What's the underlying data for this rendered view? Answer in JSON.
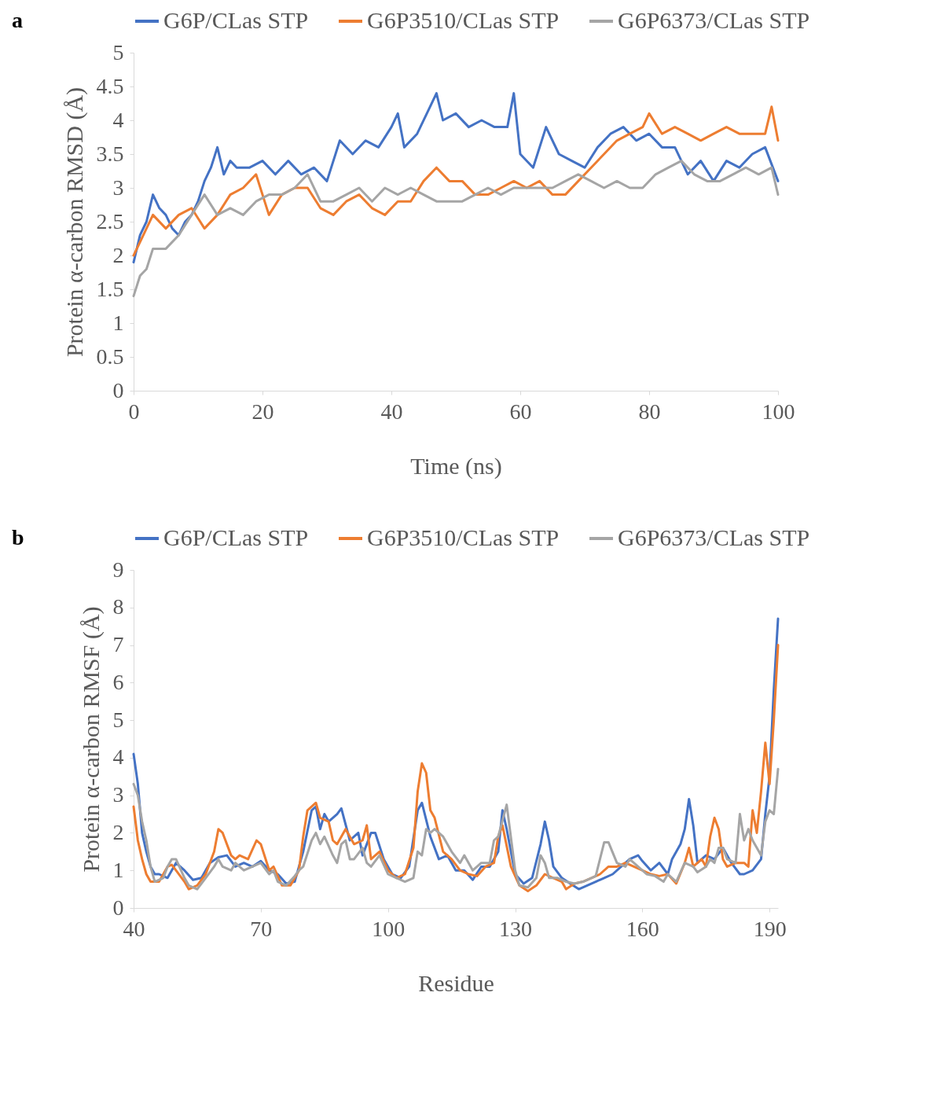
{
  "chart_data": [
    {
      "type": "line",
      "xlabel": "Time (ns)",
      "ylabel": "Protein α-carbon RMSD (Å)",
      "annotations": [
        "a"
      ],
      "legend": "top",
      "grid": false,
      "xlim": [
        0,
        100
      ],
      "xticks": [
        0,
        20,
        40,
        60,
        80,
        100
      ],
      "ylim": [
        0,
        5
      ],
      "yticks": [
        0,
        0.5,
        1,
        1.5,
        2,
        2.5,
        3,
        3.5,
        4,
        4.5,
        5
      ],
      "series": [
        {
          "name": "G6P/CLas STP",
          "color": "#4472c4",
          "x": [
            0,
            1,
            2,
            3,
            4,
            5,
            6,
            7,
            8,
            9,
            10,
            11,
            12,
            13,
            14,
            15,
            16,
            18,
            20,
            22,
            24,
            26,
            28,
            30,
            32,
            34,
            36,
            38,
            40,
            41,
            42,
            44,
            46,
            47,
            48,
            50,
            52,
            54,
            56,
            58,
            59,
            60,
            62,
            64,
            66,
            68,
            70,
            72,
            74,
            76,
            78,
            80,
            82,
            84,
            86,
            88,
            90,
            92,
            94,
            96,
            98,
            100
          ],
          "values": [
            1.9,
            2.3,
            2.5,
            2.9,
            2.7,
            2.6,
            2.4,
            2.3,
            2.5,
            2.6,
            2.8,
            3.1,
            3.3,
            3.6,
            3.2,
            3.4,
            3.3,
            3.3,
            3.4,
            3.2,
            3.4,
            3.2,
            3.3,
            3.1,
            3.7,
            3.5,
            3.7,
            3.6,
            3.9,
            4.1,
            3.6,
            3.8,
            4.2,
            4.4,
            4.0,
            4.1,
            3.9,
            4.0,
            3.9,
            3.9,
            4.4,
            3.5,
            3.3,
            3.9,
            3.5,
            3.4,
            3.3,
            3.6,
            3.8,
            3.9,
            3.7,
            3.8,
            3.6,
            3.6,
            3.2,
            3.4,
            3.1,
            3.4,
            3.3,
            3.5,
            3.6,
            3.1
          ]
        },
        {
          "name": "G6P3510/CLas STP",
          "color": "#ed7d31",
          "x": [
            0,
            1,
            2,
            3,
            5,
            7,
            9,
            11,
            13,
            15,
            17,
            19,
            21,
            23,
            25,
            27,
            29,
            31,
            33,
            35,
            37,
            39,
            41,
            43,
            45,
            47,
            49,
            51,
            53,
            55,
            57,
            59,
            61,
            63,
            65,
            67,
            69,
            71,
            73,
            75,
            77,
            79,
            80,
            82,
            84,
            86,
            88,
            90,
            92,
            94,
            96,
            98,
            99,
            100
          ],
          "values": [
            2.0,
            2.2,
            2.4,
            2.6,
            2.4,
            2.6,
            2.7,
            2.4,
            2.6,
            2.9,
            3.0,
            3.2,
            2.6,
            2.9,
            3.0,
            3.0,
            2.7,
            2.6,
            2.8,
            2.9,
            2.7,
            2.6,
            2.8,
            2.8,
            3.1,
            3.3,
            3.1,
            3.1,
            2.9,
            2.9,
            3.0,
            3.1,
            3.0,
            3.1,
            2.9,
            2.9,
            3.1,
            3.3,
            3.5,
            3.7,
            3.8,
            3.9,
            4.1,
            3.8,
            3.9,
            3.8,
            3.7,
            3.8,
            3.9,
            3.8,
            3.8,
            3.8,
            4.2,
            3.7
          ]
        },
        {
          "name": "G6P6373/CLas STP",
          "color": "#a5a5a5",
          "x": [
            0,
            1,
            2,
            3,
            5,
            7,
            9,
            11,
            13,
            15,
            17,
            19,
            21,
            23,
            25,
            27,
            29,
            31,
            33,
            35,
            37,
            39,
            41,
            43,
            45,
            47,
            49,
            51,
            53,
            55,
            57,
            59,
            61,
            63,
            65,
            67,
            69,
            71,
            73,
            75,
            77,
            79,
            81,
            83,
            85,
            87,
            89,
            91,
            93,
            95,
            97,
            99,
            100
          ],
          "values": [
            1.4,
            1.7,
            1.8,
            2.1,
            2.1,
            2.3,
            2.6,
            2.9,
            2.6,
            2.7,
            2.6,
            2.8,
            2.9,
            2.9,
            3.0,
            3.2,
            2.8,
            2.8,
            2.9,
            3.0,
            2.8,
            3.0,
            2.9,
            3.0,
            2.9,
            2.8,
            2.8,
            2.8,
            2.9,
            3.0,
            2.9,
            3.0,
            3.0,
            3.0,
            3.0,
            3.1,
            3.2,
            3.1,
            3.0,
            3.1,
            3.0,
            3.0,
            3.2,
            3.3,
            3.4,
            3.2,
            3.1,
            3.1,
            3.2,
            3.3,
            3.2,
            3.3,
            2.9
          ]
        }
      ]
    },
    {
      "type": "line",
      "xlabel": "Residue",
      "ylabel": "Protein α-carbon RMSF (Å)",
      "annotations": [
        "b"
      ],
      "legend": "top",
      "grid": false,
      "xlim": [
        40,
        192
      ],
      "xticks": [
        40,
        70,
        100,
        130,
        160,
        190
      ],
      "ylim": [
        0,
        9
      ],
      "yticks": [
        0,
        1,
        2,
        3,
        4,
        5,
        6,
        7,
        8,
        9
      ],
      "series": [
        {
          "name": "G6P/CLas STP",
          "color": "#4472c4",
          "x": [
            40,
            41,
            42,
            43,
            44,
            45,
            46,
            48,
            50,
            52,
            54,
            56,
            58,
            60,
            62,
            64,
            66,
            68,
            70,
            72,
            74,
            76,
            78,
            80,
            82,
            83,
            84,
            85,
            86,
            88,
            89,
            91,
            93,
            94,
            96,
            97,
            99,
            101,
            103,
            105,
            107,
            108,
            110,
            112,
            114,
            116,
            118,
            120,
            122,
            124,
            126,
            127,
            128,
            130,
            132,
            134,
            136,
            137,
            138,
            139,
            141,
            143,
            145,
            147,
            149,
            151,
            153,
            155,
            157,
            159,
            160,
            162,
            163,
            164,
            166,
            167,
            169,
            170,
            171,
            172,
            173,
            175,
            177,
            179,
            181,
            183,
            184,
            186,
            188,
            189,
            190,
            191,
            192
          ],
          "values": [
            4.1,
            3.3,
            2.0,
            1.5,
            1.1,
            0.9,
            0.9,
            0.8,
            1.2,
            1.0,
            0.75,
            0.8,
            1.2,
            1.35,
            1.4,
            1.1,
            1.2,
            1.1,
            1.25,
            1.0,
            0.9,
            0.65,
            0.7,
            1.5,
            2.6,
            2.7,
            2.1,
            2.5,
            2.3,
            2.5,
            2.65,
            1.8,
            2.0,
            1.4,
            2.0,
            2.0,
            1.3,
            0.9,
            0.8,
            1.1,
            2.6,
            2.8,
            1.9,
            1.3,
            1.4,
            1.0,
            1.0,
            0.75,
            1.1,
            1.1,
            1.5,
            2.6,
            2.1,
            0.9,
            0.65,
            0.8,
            1.7,
            2.3,
            1.8,
            1.1,
            0.8,
            0.65,
            0.5,
            0.6,
            0.7,
            0.8,
            0.9,
            1.1,
            1.3,
            1.4,
            1.25,
            1.0,
            1.1,
            1.2,
            0.9,
            1.3,
            1.7,
            2.1,
            2.9,
            2.2,
            1.2,
            1.4,
            1.3,
            1.6,
            1.2,
            0.9,
            0.9,
            1.0,
            1.3,
            2.5,
            3.5,
            5.8,
            7.7
          ]
        },
        {
          "name": "G6P3510/CLas STP",
          "color": "#ed7d31",
          "x": [
            40,
            41,
            42,
            43,
            44,
            46,
            48,
            49,
            50,
            52,
            53,
            55,
            57,
            59,
            60,
            61,
            63,
            64,
            65,
            67,
            69,
            70,
            72,
            73,
            75,
            77,
            79,
            80,
            81,
            83,
            84,
            86,
            87,
            88,
            90,
            92,
            94,
            95,
            96,
            98,
            100,
            102,
            104,
            106,
            107,
            108,
            109,
            110,
            111,
            113,
            115,
            117,
            119,
            121,
            123,
            125,
            126,
            127,
            129,
            131,
            133,
            135,
            137,
            139,
            141,
            142,
            144,
            146,
            148,
            150,
            152,
            154,
            156,
            158,
            160,
            162,
            164,
            166,
            168,
            170,
            171,
            172,
            174,
            175,
            176,
            177,
            178,
            179,
            180,
            182,
            184,
            185,
            186,
            187,
            188,
            189,
            190,
            191,
            192
          ],
          "values": [
            2.7,
            1.8,
            1.3,
            0.9,
            0.7,
            0.7,
            1.1,
            1.15,
            1.0,
            0.7,
            0.5,
            0.6,
            0.9,
            1.5,
            2.1,
            2.0,
            1.4,
            1.3,
            1.4,
            1.3,
            1.8,
            1.7,
            1.0,
            1.1,
            0.6,
            0.6,
            1.0,
            1.9,
            2.6,
            2.8,
            2.4,
            2.3,
            1.8,
            1.7,
            2.1,
            1.7,
            1.8,
            2.2,
            1.3,
            1.5,
            1.0,
            0.8,
            0.9,
            1.6,
            3.1,
            3.85,
            3.6,
            2.6,
            2.4,
            1.5,
            1.3,
            1.0,
            0.9,
            0.85,
            1.1,
            1.2,
            1.9,
            2.2,
            1.1,
            0.6,
            0.45,
            0.6,
            0.9,
            0.8,
            0.7,
            0.5,
            0.65,
            0.7,
            0.8,
            0.9,
            1.1,
            1.1,
            1.2,
            1.1,
            1.0,
            0.9,
            0.85,
            0.9,
            0.65,
            1.2,
            1.6,
            1.1,
            1.3,
            1.1,
            1.9,
            2.4,
            2.1,
            1.3,
            1.1,
            1.2,
            1.2,
            1.1,
            2.6,
            2.0,
            3.1,
            4.4,
            3.3,
            5.0,
            7.0
          ]
        },
        {
          "name": "G6P6373/CLas STP",
          "color": "#a5a5a5",
          "x": [
            40,
            41,
            42,
            43,
            44,
            45,
            47,
            48,
            49,
            50,
            52,
            53,
            55,
            57,
            59,
            60,
            61,
            63,
            64,
            66,
            68,
            70,
            72,
            73,
            74,
            76,
            78,
            79,
            80,
            82,
            83,
            84,
            85,
            87,
            88,
            89,
            90,
            91,
            92,
            94,
            95,
            96,
            98,
            100,
            102,
            104,
            106,
            107,
            108,
            109,
            110,
            111,
            113,
            115,
            117,
            118,
            120,
            122,
            124,
            125,
            126,
            128,
            130,
            131,
            133,
            135,
            136,
            137,
            138,
            140,
            142,
            144,
            146,
            148,
            149,
            151,
            152,
            154,
            156,
            157,
            159,
            161,
            163,
            165,
            166,
            168,
            170,
            172,
            173,
            175,
            176,
            177,
            178,
            179,
            180,
            182,
            183,
            184,
            185,
            186,
            187,
            188,
            189,
            190,
            191,
            192
          ],
          "values": [
            3.3,
            3.0,
            2.3,
            1.8,
            1.1,
            0.7,
            0.8,
            1.1,
            1.3,
            1.3,
            0.8,
            0.6,
            0.5,
            0.8,
            1.1,
            1.3,
            1.1,
            1.0,
            1.2,
            1.0,
            1.1,
            1.2,
            0.9,
            1.0,
            0.7,
            0.6,
            0.85,
            1.0,
            1.1,
            1.8,
            2.0,
            1.7,
            1.9,
            1.4,
            1.2,
            1.7,
            1.8,
            1.3,
            1.3,
            1.6,
            1.2,
            1.1,
            1.4,
            0.9,
            0.8,
            0.7,
            0.8,
            1.5,
            1.4,
            2.1,
            2.0,
            2.1,
            1.9,
            1.5,
            1.2,
            1.4,
            1.0,
            1.2,
            1.2,
            1.8,
            1.9,
            2.75,
            1.0,
            0.6,
            0.55,
            0.8,
            1.4,
            1.2,
            0.8,
            0.8,
            0.7,
            0.65,
            0.7,
            0.8,
            0.85,
            1.75,
            1.75,
            1.2,
            1.1,
            1.3,
            1.1,
            0.9,
            0.85,
            0.7,
            0.9,
            0.7,
            1.2,
            1.1,
            0.95,
            1.1,
            1.3,
            1.2,
            1.6,
            1.6,
            1.3,
            1.2,
            2.5,
            1.8,
            2.1,
            1.8,
            1.6,
            1.4,
            2.3,
            2.6,
            2.5,
            3.7
          ]
        }
      ]
    }
  ]
}
